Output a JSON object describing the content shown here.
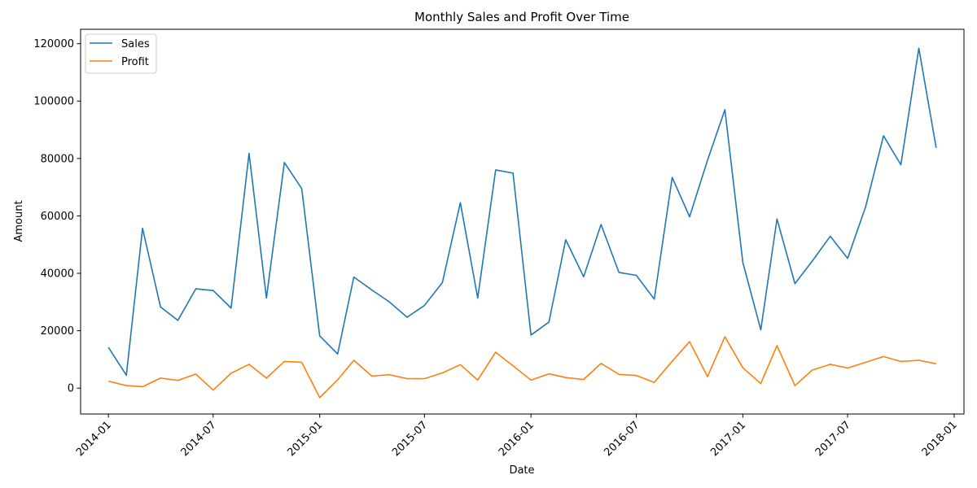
{
  "chart_data": {
    "type": "line",
    "title": "Monthly Sales and Profit Over Time",
    "xlabel": "Date",
    "ylabel": "Amount",
    "grid": false,
    "legend_position": "top-left",
    "x": [
      "2014-01",
      "2014-02",
      "2014-03",
      "2014-04",
      "2014-05",
      "2014-06",
      "2014-07",
      "2014-08",
      "2014-09",
      "2014-10",
      "2014-11",
      "2014-12",
      "2015-01",
      "2015-02",
      "2015-03",
      "2015-04",
      "2015-05",
      "2015-06",
      "2015-07",
      "2015-08",
      "2015-09",
      "2015-10",
      "2015-11",
      "2015-12",
      "2016-01",
      "2016-02",
      "2016-03",
      "2016-04",
      "2016-05",
      "2016-06",
      "2016-07",
      "2016-08",
      "2016-09",
      "2016-10",
      "2016-11",
      "2016-12",
      "2017-01",
      "2017-02",
      "2017-03",
      "2017-04",
      "2017-05",
      "2017-06",
      "2017-07",
      "2017-08",
      "2017-09",
      "2017-10",
      "2017-11",
      "2017-12"
    ],
    "x_ticks": [
      "2014-01",
      "2014-07",
      "2015-01",
      "2015-07",
      "2016-01",
      "2016-07",
      "2017-01",
      "2017-07",
      "2018-01"
    ],
    "xlim": [
      "2013-11-14",
      "2018-01-18"
    ],
    "ylim": [
      -9000,
      125000
    ],
    "y_ticks": [
      0,
      20000,
      40000,
      60000,
      80000,
      100000,
      120000
    ],
    "series": [
      {
        "name": "Sales",
        "color": "#1f77b4",
        "values": [
          14200,
          4500,
          55700,
          28300,
          23600,
          34600,
          34000,
          27900,
          81800,
          31400,
          78600,
          69500,
          18200,
          11900,
          38700,
          34200,
          30100,
          24700,
          28800,
          36800,
          64600,
          31400,
          76000,
          74900,
          18500,
          23000,
          51700,
          38800,
          57000,
          40300,
          39300,
          31000,
          73400,
          59700,
          79400,
          97000,
          43800,
          20300,
          58900,
          36400,
          44300,
          52900,
          45200,
          63100,
          87900,
          77800,
          118400,
          83700
        ]
      },
      {
        "name": "Profit",
        "color": "#ff7f0e",
        "values": [
          2400,
          900,
          500,
          3500,
          2700,
          4900,
          -700,
          5200,
          8300,
          3500,
          9300,
          9000,
          -3300,
          2900,
          9700,
          4200,
          4700,
          3300,
          3300,
          5300,
          8200,
          2800,
          12500,
          7800,
          2800,
          5000,
          3700,
          3000,
          8600,
          4800,
          4400,
          2000,
          9400,
          16200,
          4000,
          17900,
          7100,
          1600,
          14800,
          900,
          6300,
          8300,
          7000,
          9000,
          11000,
          9300,
          9700,
          8500
        ]
      }
    ]
  }
}
